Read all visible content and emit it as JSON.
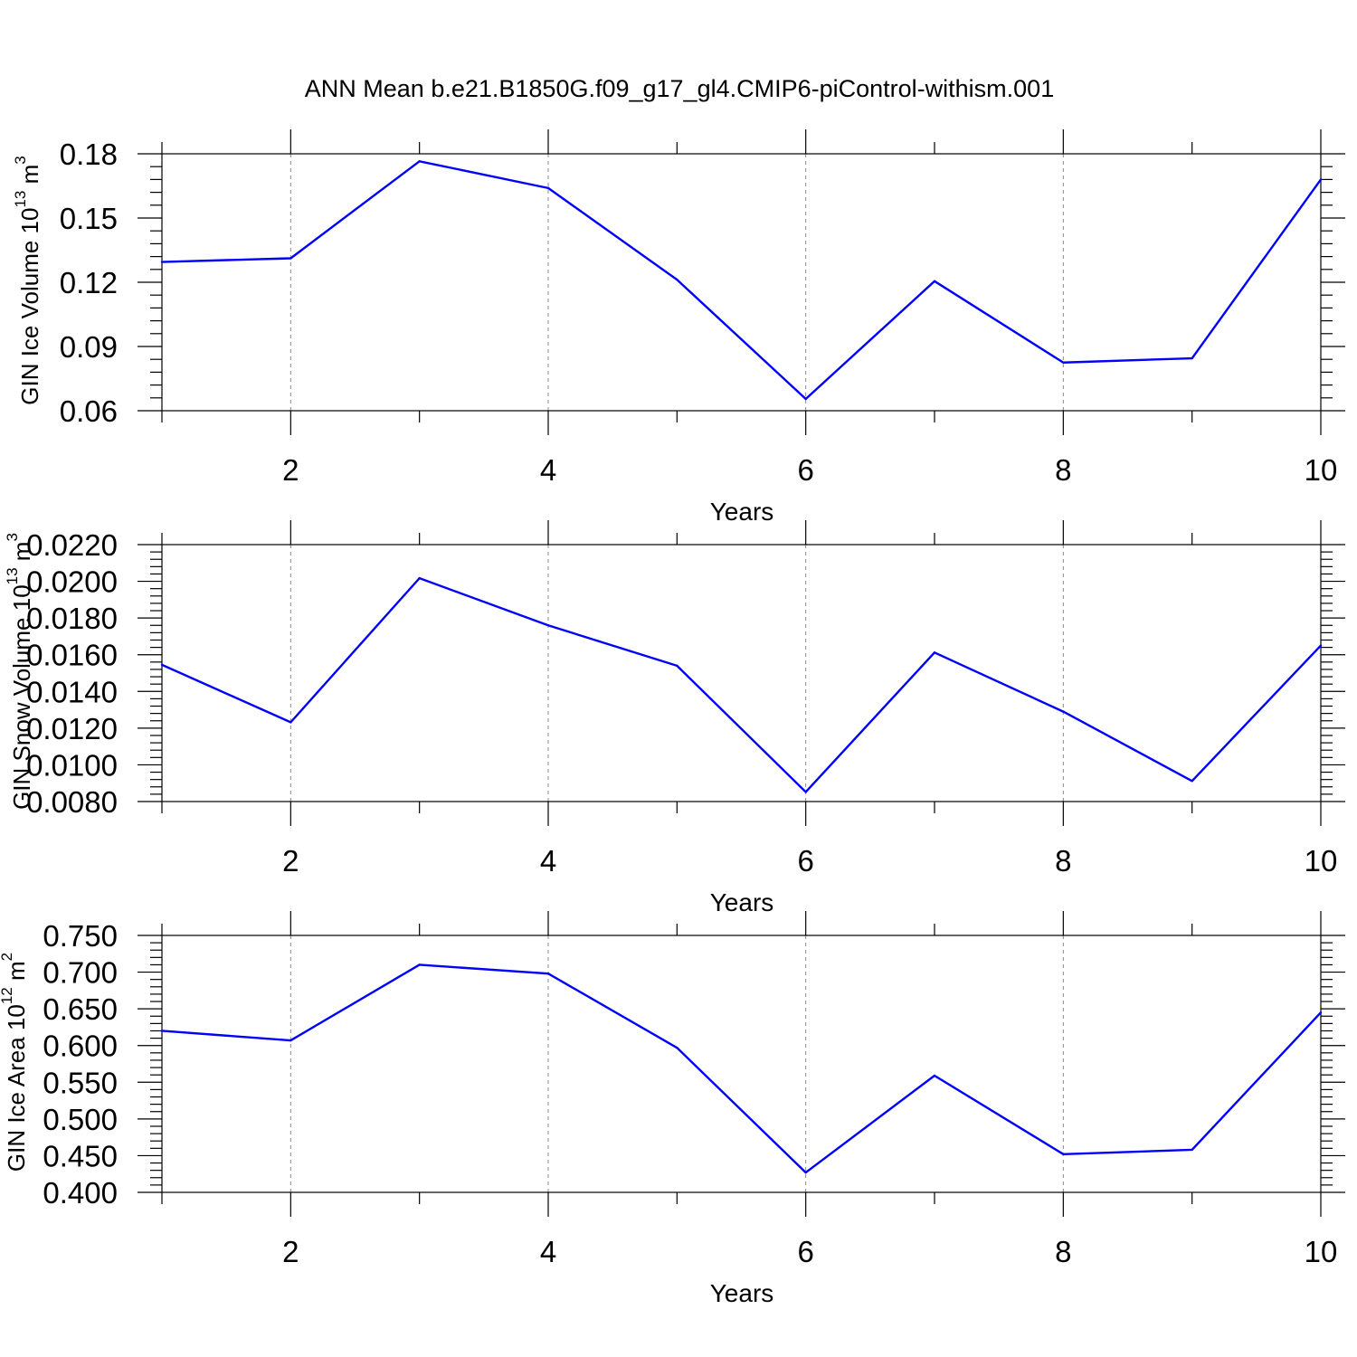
{
  "title": "ANN Mean b.e21.B1850G.f09_g17_gl4.CMIP6-piControl-withism.001",
  "chart_data": [
    {
      "type": "line",
      "xlabel": "Years",
      "ylabel": "GIN Ice Volume 10",
      "ylabel_exp": "13",
      "ylabel_unit": " m",
      "ylabel_unit_exp": "3",
      "xlim": [
        1,
        10
      ],
      "ylim": [
        0.06,
        0.18
      ],
      "xticks": [
        2,
        4,
        6,
        8,
        10
      ],
      "xtick_labels": [
        "2",
        "4",
        "6",
        "8",
        "10"
      ],
      "yticks": [
        0.06,
        0.09,
        0.12,
        0.15,
        0.18
      ],
      "ytick_labels": [
        "0.06",
        "0.09",
        "0.12",
        "0.15",
        "0.18"
      ],
      "grid": "vertical dashed at major x ticks",
      "series_color": "#0000ff",
      "x": [
        1,
        2,
        3,
        4,
        5,
        6,
        7,
        8,
        9,
        10
      ],
      "values": [
        0.1295,
        0.1312,
        0.1765,
        0.164,
        0.1212,
        0.0655,
        0.1205,
        0.0825,
        0.0845,
        0.168
      ]
    },
    {
      "type": "line",
      "xlabel": "Years",
      "ylabel": "GIN Snow Volume 10",
      "ylabel_exp": "13",
      "ylabel_unit": " m",
      "ylabel_unit_exp": "3",
      "xlim": [
        1,
        10
      ],
      "ylim": [
        0.008,
        0.022
      ],
      "xticks": [
        2,
        4,
        6,
        8,
        10
      ],
      "xtick_labels": [
        "2",
        "4",
        "6",
        "8",
        "10"
      ],
      "yticks": [
        0.008,
        0.01,
        0.012,
        0.014,
        0.016,
        0.018,
        0.02,
        0.022
      ],
      "ytick_labels": [
        "0.0080",
        "0.0100",
        "0.0120",
        "0.0140",
        "0.0160",
        "0.0180",
        "0.0200",
        "0.0220"
      ],
      "grid": "vertical dashed at major x ticks",
      "series_color": "#0000ff",
      "x": [
        1,
        2,
        3,
        4,
        5,
        6,
        7,
        8,
        9,
        10
      ],
      "values": [
        0.01545,
        0.01232,
        0.02017,
        0.0176,
        0.0154,
        0.00852,
        0.01612,
        0.0129,
        0.00912,
        0.0165
      ]
    },
    {
      "type": "line",
      "xlabel": "Years",
      "ylabel": "GIN Ice Area 10",
      "ylabel_exp": "12",
      "ylabel_unit": " m",
      "ylabel_unit_exp": "2",
      "xlim": [
        1,
        10
      ],
      "ylim": [
        0.4,
        0.75
      ],
      "xticks": [
        2,
        4,
        6,
        8,
        10
      ],
      "xtick_labels": [
        "2",
        "4",
        "6",
        "8",
        "10"
      ],
      "yticks": [
        0.4,
        0.45,
        0.5,
        0.55,
        0.6,
        0.65,
        0.7,
        0.75
      ],
      "ytick_labels": [
        "0.400",
        "0.450",
        "0.500",
        "0.550",
        "0.600",
        "0.650",
        "0.700",
        "0.750"
      ],
      "grid": "vertical dashed at major x ticks",
      "series_color": "#0000ff",
      "x": [
        1,
        2,
        3,
        4,
        5,
        6,
        7,
        8,
        9,
        10
      ],
      "values": [
        0.62,
        0.607,
        0.71,
        0.698,
        0.597,
        0.427,
        0.559,
        0.452,
        0.458,
        0.645
      ]
    }
  ]
}
